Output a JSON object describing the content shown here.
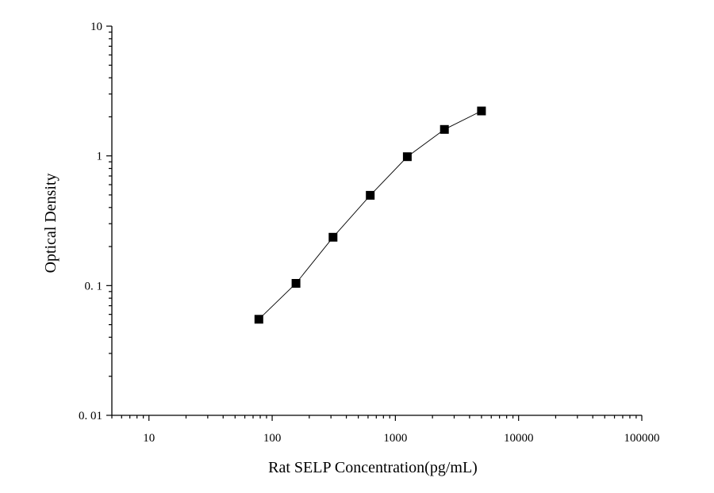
{
  "chart_data": {
    "type": "scatter",
    "xlabel": "Rat SELP Concentration(pg/mL)",
    "ylabel": "Optical Density",
    "x_scale": "log",
    "y_scale": "log",
    "xlim": [
      5,
      100000
    ],
    "ylim": [
      0.01,
      10
    ],
    "x_ticks": [
      10,
      100,
      1000,
      10000,
      100000
    ],
    "x_tick_labels": [
      "10",
      "100",
      "1000",
      "10000",
      "100000"
    ],
    "y_ticks": [
      0.01,
      0.1,
      1,
      10
    ],
    "y_tick_labels": [
      "0. 01",
      "0. 1",
      "1",
      "10"
    ],
    "grid": false,
    "marker": "square",
    "connect_points": true,
    "color": "#000000",
    "series": [
      {
        "x": [
          78,
          156,
          312,
          625,
          1250,
          2500,
          5000
        ],
        "y": [
          0.055,
          0.104,
          0.236,
          0.497,
          0.985,
          1.6,
          2.22
        ]
      }
    ]
  }
}
